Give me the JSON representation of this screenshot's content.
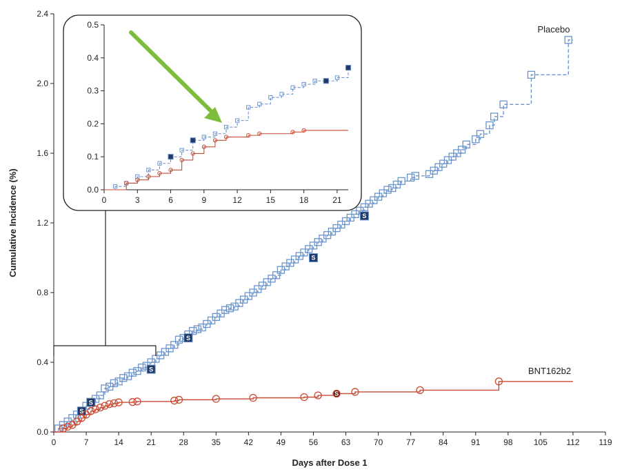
{
  "chart_data": [
    {
      "type": "line",
      "name": "main",
      "title": "",
      "xlabel": "Days after Dose 1",
      "ylabel": "Cumulative Incidence (%)",
      "xlim": [
        0,
        119
      ],
      "ylim": [
        0,
        2.4
      ],
      "xticks": [
        0,
        7,
        14,
        21,
        28,
        35,
        42,
        49,
        56,
        63,
        70,
        77,
        84,
        91,
        98,
        105,
        112,
        119
      ],
      "yticks": [
        0.0,
        0.4,
        0.8,
        1.2,
        1.6,
        2.0,
        2.4
      ],
      "ytick_labels": [
        "0.0",
        "0.4",
        "0.8",
        "1.2",
        "1.6",
        "2.0",
        "2.4"
      ],
      "series": [
        {
          "name": "Placebo",
          "color": "#6b94cc",
          "style": "dashed",
          "marker": "square",
          "x": [
            1,
            2,
            3,
            4,
            5,
            6,
            7,
            8,
            9,
            10,
            11,
            12,
            13,
            14,
            15,
            16,
            17,
            18,
            19,
            20,
            21,
            22,
            23,
            24,
            25,
            26,
            27,
            28,
            29,
            30,
            31,
            32,
            33,
            34,
            35,
            36,
            37,
            38,
            39,
            40,
            41,
            42,
            43,
            44,
            45,
            46,
            47,
            48,
            49,
            50,
            51,
            52,
            53,
            54,
            55,
            56,
            57,
            58,
            59,
            60,
            61,
            62,
            63,
            64,
            65,
            66,
            67,
            68,
            69,
            70,
            71,
            72,
            73,
            74,
            75,
            77,
            78,
            81,
            82,
            83,
            84,
            85,
            86,
            87,
            88,
            89,
            91,
            92,
            94,
            95,
            97,
            103,
            111
          ],
          "y": [
            0.02,
            0.04,
            0.06,
            0.08,
            0.1,
            0.12,
            0.15,
            0.17,
            0.19,
            0.21,
            0.25,
            0.26,
            0.28,
            0.29,
            0.31,
            0.32,
            0.34,
            0.35,
            0.37,
            0.38,
            0.4,
            0.42,
            0.44,
            0.46,
            0.48,
            0.5,
            0.53,
            0.54,
            0.56,
            0.58,
            0.59,
            0.6,
            0.62,
            0.64,
            0.66,
            0.68,
            0.7,
            0.71,
            0.72,
            0.74,
            0.76,
            0.78,
            0.8,
            0.82,
            0.84,
            0.86,
            0.88,
            0.9,
            0.93,
            0.95,
            0.97,
            0.99,
            1.01,
            1.03,
            1.05,
            1.07,
            1.09,
            1.11,
            1.13,
            1.15,
            1.17,
            1.19,
            1.21,
            1.23,
            1.25,
            1.27,
            1.29,
            1.31,
            1.33,
            1.35,
            1.37,
            1.39,
            1.4,
            1.42,
            1.44,
            1.46,
            1.47,
            1.48,
            1.5,
            1.52,
            1.54,
            1.56,
            1.58,
            1.6,
            1.62,
            1.65,
            1.68,
            1.71,
            1.76,
            1.81,
            1.88,
            2.05,
            2.25
          ],
          "end_x": 112,
          "end_y": 2.25,
          "s_markers_x": [
            6,
            8,
            21,
            29,
            56,
            67
          ],
          "s_markers_y": [
            0.12,
            0.17,
            0.36,
            0.54,
            1.0,
            1.24
          ]
        },
        {
          "name": "BNT162b2",
          "color": "#c84a33",
          "style": "solid",
          "marker": "circle",
          "x": [
            2,
            3,
            4,
            5,
            6,
            7,
            8,
            9,
            10,
            11,
            12,
            13,
            14,
            17,
            18,
            26,
            27,
            35,
            43,
            54,
            57,
            61,
            65,
            79,
            96
          ],
          "y": [
            0.02,
            0.03,
            0.04,
            0.06,
            0.08,
            0.1,
            0.12,
            0.13,
            0.14,
            0.15,
            0.16,
            0.165,
            0.17,
            0.172,
            0.175,
            0.18,
            0.185,
            0.19,
            0.196,
            0.2,
            0.21,
            0.22,
            0.23,
            0.24,
            0.29
          ],
          "end_x": 112,
          "end_y": 0.29,
          "s_markers_x": [
            61
          ],
          "s_markers_y": [
            0.22
          ]
        }
      ]
    },
    {
      "type": "line",
      "name": "inset",
      "title": "",
      "xlim": [
        0,
        22
      ],
      "ylim": [
        0,
        0.5
      ],
      "xticks": [
        0,
        3,
        6,
        9,
        12,
        15,
        18,
        21
      ],
      "yticks": [
        0.0,
        0.1,
        0.2,
        0.3,
        0.4,
        0.5
      ],
      "ytick_labels": [
        "0.0",
        "0.1",
        "0.2",
        "0.3",
        "0.4",
        "0.5"
      ],
      "series": [
        {
          "name": "Placebo",
          "color": "#6b94cc",
          "style": "dashed",
          "marker": "square",
          "x": [
            1,
            2,
            3,
            4,
            5,
            6,
            7,
            8,
            9,
            10,
            11,
            12,
            13,
            14,
            15,
            16,
            17,
            18,
            19,
            20,
            21,
            22
          ],
          "y": [
            0.01,
            0.02,
            0.04,
            0.06,
            0.08,
            0.1,
            0.12,
            0.15,
            0.16,
            0.17,
            0.19,
            0.21,
            0.25,
            0.26,
            0.28,
            0.29,
            0.31,
            0.32,
            0.33,
            0.33,
            0.34,
            0.37
          ],
          "end_x": 22,
          "end_y": 0.37,
          "s_markers_x": [
            6,
            8,
            20,
            22
          ],
          "s_markers_y": [
            0.1,
            0.15,
            0.33,
            0.37
          ]
        },
        {
          "name": "BNT162b2",
          "color": "#c84a33",
          "style": "solid",
          "marker": "circle",
          "x": [
            2,
            3,
            4,
            5,
            6,
            7,
            8,
            9,
            10,
            11,
            13,
            14,
            17,
            18
          ],
          "y": [
            0.02,
            0.03,
            0.04,
            0.05,
            0.06,
            0.09,
            0.11,
            0.13,
            0.15,
            0.16,
            0.165,
            0.17,
            0.175,
            0.18
          ],
          "end_x": 22,
          "end_y": 0.18,
          "s_markers_x": [],
          "s_markers_y": []
        }
      ]
    }
  ],
  "colors": {
    "placebo": "#6b94cc",
    "vaccine": "#c84a33",
    "arrow": "#7dbd3c",
    "s_marker_fill": "#1f3a66",
    "axis": "#222222"
  },
  "labels": {
    "s_marker": "S"
  }
}
